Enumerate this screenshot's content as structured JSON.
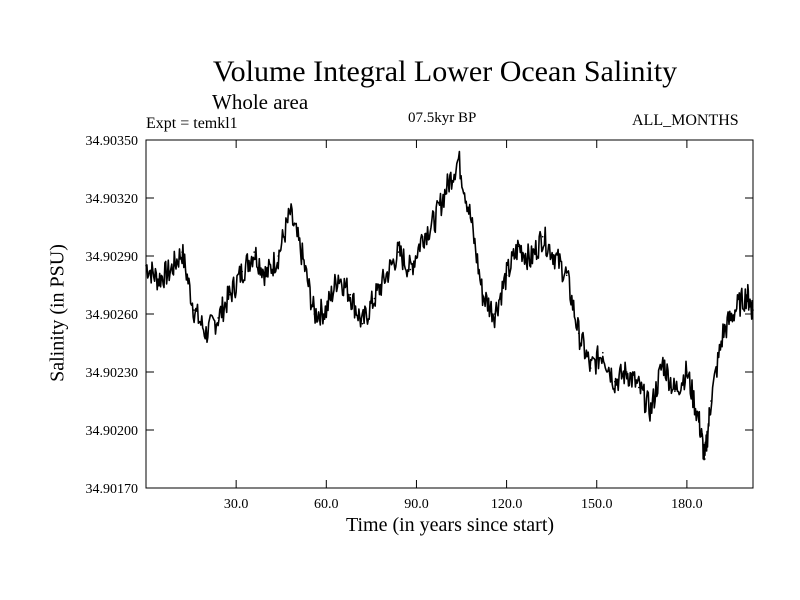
{
  "chart_data": {
    "type": "line",
    "title": "Volume Integral Lower Ocean Salinity",
    "subtitle": "Whole area",
    "annotations": {
      "experiment": "Expt = temkl1",
      "period": "07.5kyr BP",
      "months": "ALL_MONTHS"
    },
    "xlabel": "Time (in years since start)",
    "ylabel": "Salinity (in PSU)",
    "xlim": [
      0,
      202
    ],
    "ylim": [
      34.9017,
      34.9035
    ],
    "x_ticks": [
      30,
      60,
      90,
      120,
      150,
      180
    ],
    "x_tick_labels": [
      "30.0",
      "60.0",
      "90.0",
      "120.0",
      "150.0",
      "180.0"
    ],
    "y_ticks": [
      34.9017,
      34.902,
      34.9023,
      34.9026,
      34.9029,
      34.9032,
      34.9035
    ],
    "y_tick_labels": [
      "34.90170",
      "34.90200",
      "34.90230",
      "34.90260",
      "34.90290",
      "34.90320",
      "34.90350"
    ],
    "grid": false,
    "series": [
      {
        "name": "Lower ocean salinity",
        "color": "#000000",
        "x": [
          0,
          4,
          8,
          12,
          16,
          20,
          24,
          28,
          32,
          36,
          40,
          44,
          48,
          52,
          56,
          60,
          64,
          68,
          72,
          76,
          80,
          84,
          88,
          92,
          96,
          100,
          104,
          108,
          112,
          116,
          120,
          124,
          128,
          132,
          136,
          140,
          144,
          148,
          152,
          156,
          160,
          164,
          168,
          172,
          176,
          180,
          184,
          186,
          188,
          192,
          196,
          200,
          202
        ],
        "values": [
          34.90285,
          34.90278,
          34.90282,
          34.90292,
          34.90262,
          34.9025,
          34.90258,
          34.9027,
          34.90282,
          34.90292,
          34.9028,
          34.9029,
          34.90312,
          34.9029,
          34.9026,
          34.90262,
          34.9028,
          34.9027,
          34.90255,
          34.90268,
          34.9028,
          34.90292,
          34.90283,
          34.903,
          34.90308,
          34.90325,
          34.9034,
          34.9031,
          34.9027,
          34.9026,
          34.9028,
          34.90295,
          34.90288,
          34.903,
          34.9029,
          34.9028,
          34.9025,
          34.90232,
          34.9024,
          34.90225,
          34.9023,
          34.90222,
          34.9021,
          34.90235,
          34.9022,
          34.9023,
          34.90205,
          34.90185,
          34.90215,
          34.9025,
          34.90262,
          34.9027,
          34.90262
        ]
      }
    ]
  }
}
